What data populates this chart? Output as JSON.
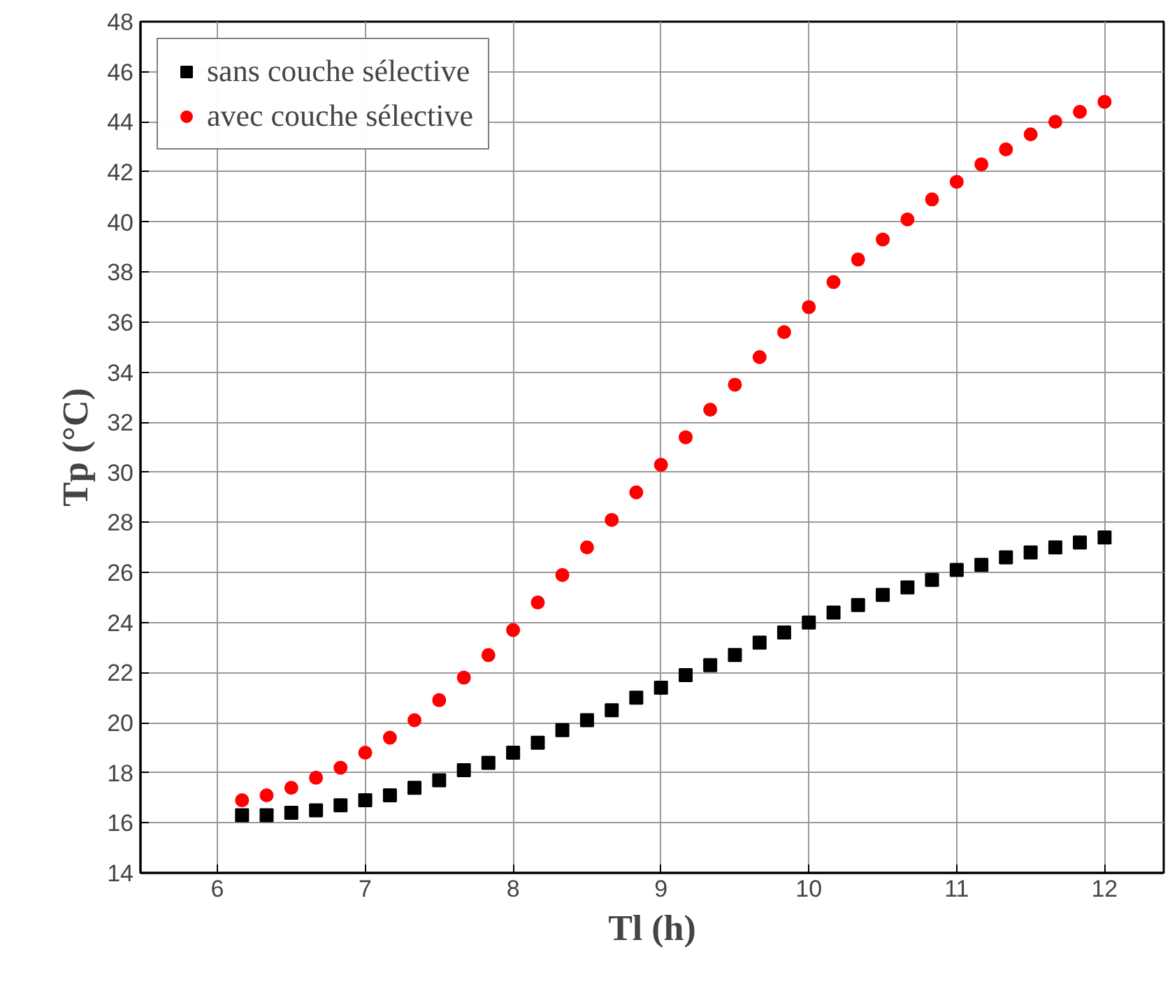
{
  "chart_data": {
    "type": "scatter",
    "xlabel": "Tl (h)",
    "ylabel": "Tp (°C)",
    "x": [
      6.167,
      6.333,
      6.5,
      6.667,
      6.833,
      7,
      7.167,
      7.333,
      7.5,
      7.667,
      7.833,
      8,
      8.167,
      8.333,
      8.5,
      8.667,
      8.833,
      9,
      9.167,
      9.333,
      9.5,
      9.667,
      9.833,
      10,
      10.167,
      10.333,
      10.5,
      10.667,
      10.833,
      11,
      11.167,
      11.333,
      11.5,
      11.667,
      11.833,
      12
    ],
    "series": [
      {
        "name": "sans couche sélective",
        "color": "#000000",
        "marker": "square",
        "values": [
          16.3,
          16.3,
          16.4,
          16.5,
          16.7,
          16.9,
          17.1,
          17.4,
          17.7,
          18.1,
          18.4,
          18.8,
          19.2,
          19.7,
          20.1,
          20.5,
          21.0,
          21.4,
          21.9,
          22.3,
          22.7,
          23.2,
          23.6,
          24.0,
          24.4,
          24.7,
          25.1,
          25.4,
          25.7,
          26.1,
          26.3,
          26.6,
          26.8,
          27.0,
          27.2,
          27.4
        ]
      },
      {
        "name": "avec couche sélective",
        "color": "#ff0000",
        "marker": "circle",
        "values": [
          16.9,
          17.1,
          17.4,
          17.8,
          18.2,
          18.8,
          19.4,
          20.1,
          20.9,
          21.8,
          22.7,
          23.7,
          24.8,
          25.9,
          27.0,
          28.1,
          29.2,
          30.3,
          31.4,
          32.5,
          33.5,
          34.6,
          35.6,
          36.6,
          37.6,
          38.5,
          39.3,
          40.1,
          40.9,
          41.6,
          42.3,
          42.9,
          43.5,
          44.0,
          44.4,
          44.8
        ]
      }
    ],
    "xlim": [
      5.48,
      12.4
    ],
    "ylim": [
      14,
      48
    ],
    "xticks": [
      6,
      7,
      8,
      9,
      10,
      11,
      12
    ],
    "yticks": [
      14,
      16,
      18,
      20,
      22,
      24,
      26,
      28,
      30,
      32,
      34,
      36,
      38,
      40,
      42,
      44,
      46,
      48
    ],
    "grid": true,
    "legend": "top left"
  }
}
